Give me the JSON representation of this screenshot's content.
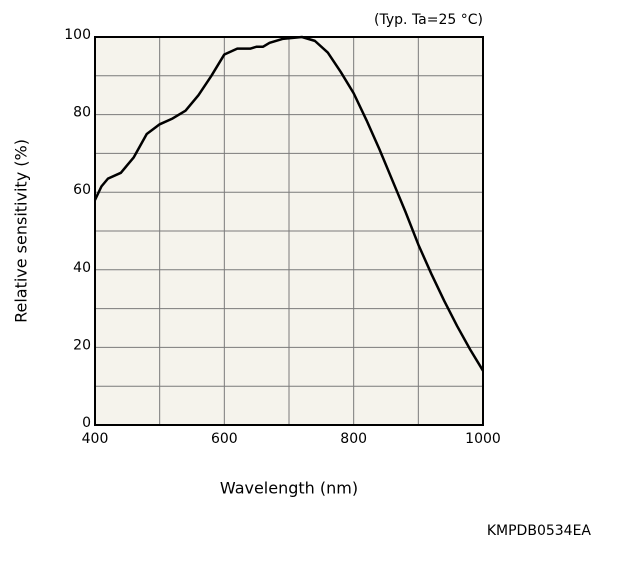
{
  "chart_data": {
    "type": "line",
    "annotation": "(Typ. Ta=25 °C)",
    "x_label": "Wavelength (nm)",
    "y_label": "Relative sensitivity (%)",
    "footer": "KMPDB0534EA",
    "x": [
      400,
      410,
      420,
      440,
      460,
      480,
      500,
      520,
      540,
      560,
      580,
      600,
      620,
      640,
      650,
      660,
      670,
      690,
      720,
      740,
      760,
      780,
      800,
      820,
      840,
      860,
      880,
      900,
      920,
      940,
      960,
      980,
      1000
    ],
    "series": [
      {
        "color": "#000000",
        "values": [
          58,
          61.5,
          63.5,
          65,
          69,
          75,
          77.5,
          79,
          81,
          85,
          90,
          95.5,
          97,
          97,
          97.5,
          97.5,
          98.5,
          99.5,
          100,
          99,
          96,
          91,
          85.5,
          78.5,
          71,
          63,
          55,
          46.5,
          39,
          32,
          25.5,
          19.5,
          14
        ]
      }
    ],
    "xlim": [
      400,
      1000
    ],
    "ylim": [
      0,
      100
    ],
    "xticks": [
      400,
      600,
      800,
      1000
    ],
    "yticks": [
      0,
      20,
      40,
      60,
      80,
      100
    ],
    "minor_xticks": [
      500,
      700,
      900
    ],
    "minor_yticks": [
      10,
      30,
      50,
      70,
      90
    ],
    "grid": true,
    "plot_background": "#f5f3ec"
  }
}
